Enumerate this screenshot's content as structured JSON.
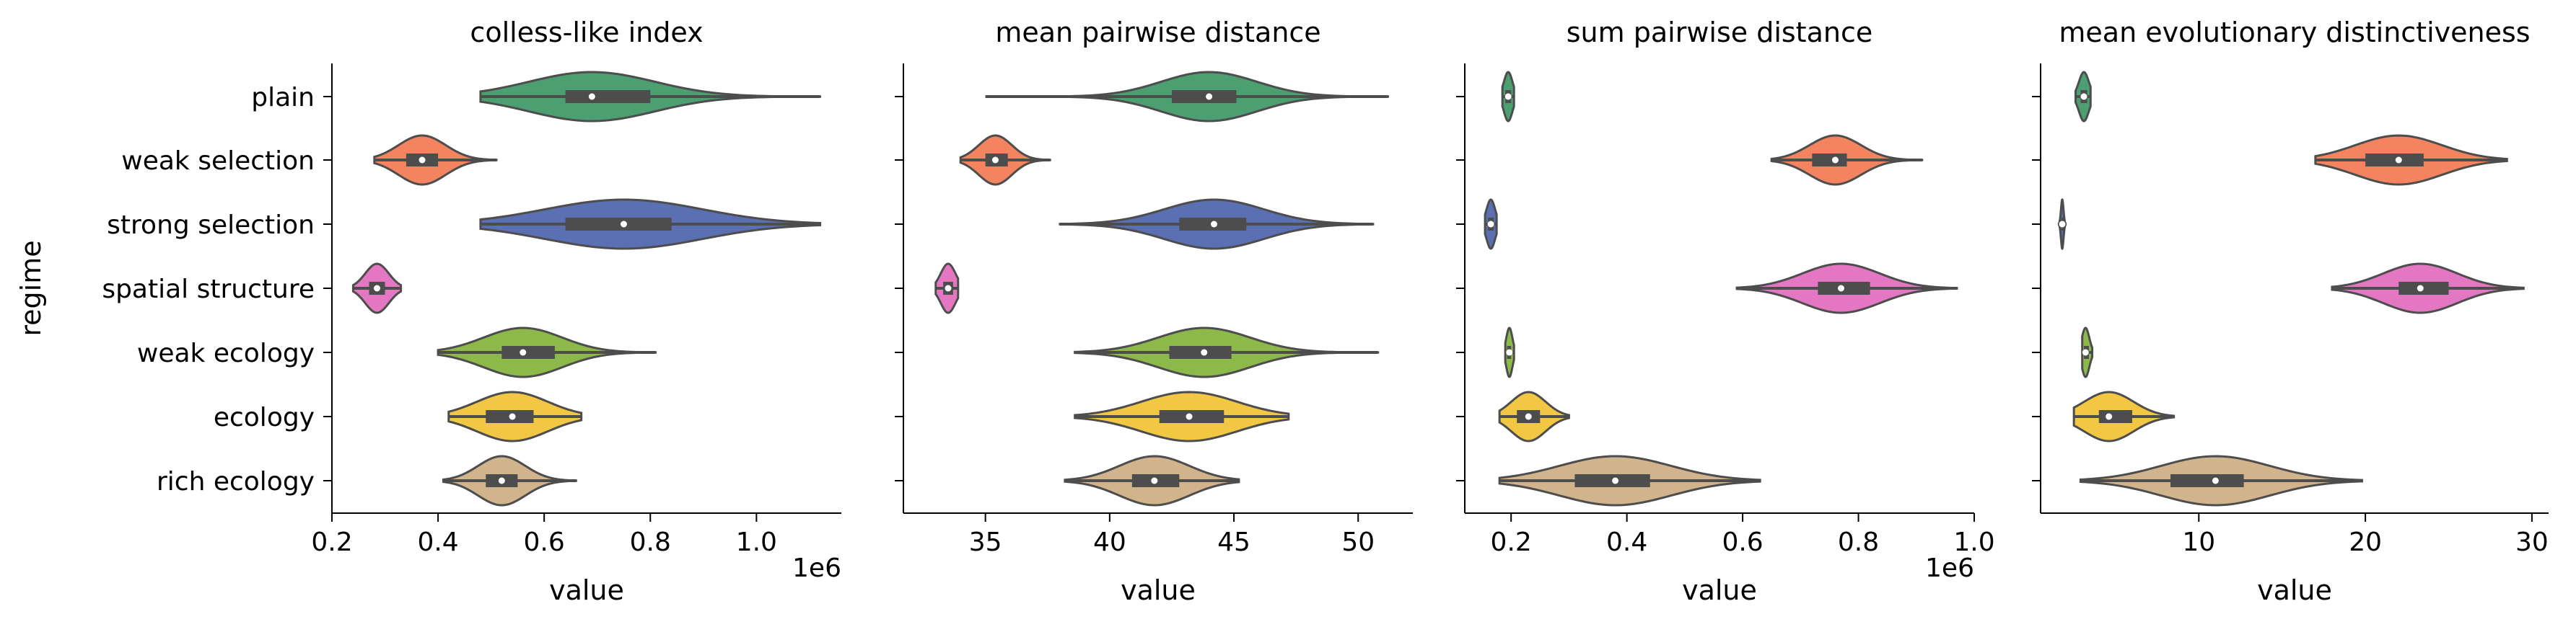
{
  "chart_data": {
    "type": "violin",
    "ylabel": "regime",
    "categories": [
      "plain",
      "weak selection",
      "strong selection",
      "spatial structure",
      "weak ecology",
      "ecology",
      "rich ecology"
    ],
    "colors": [
      "#4c9f70",
      "#f4845f",
      "#5b6fb3",
      "#e377c2",
      "#8cb94a",
      "#f2c744",
      "#d2b48c"
    ],
    "panels": [
      {
        "title": "colless-like index",
        "xlabel": "value",
        "offset_text": "1e6",
        "xlim": [
          0.2,
          1.16
        ],
        "ticks": [
          0.2,
          0.4,
          0.6,
          0.8,
          1.0
        ],
        "tick_labels": [
          "0.2",
          "0.4",
          "0.6",
          "0.8",
          "1.0"
        ],
        "stats": [
          {
            "min": 0.48,
            "q1": 0.64,
            "median": 0.69,
            "q3": 0.8,
            "max": 1.12
          },
          {
            "min": 0.28,
            "q1": 0.34,
            "median": 0.37,
            "q3": 0.4,
            "max": 0.51
          },
          {
            "min": 0.48,
            "q1": 0.64,
            "median": 0.75,
            "q3": 0.84,
            "max": 1.12
          },
          {
            "min": 0.24,
            "q1": 0.27,
            "median": 0.285,
            "q3": 0.3,
            "max": 0.33
          },
          {
            "min": 0.4,
            "q1": 0.52,
            "median": 0.56,
            "q3": 0.62,
            "max": 0.81
          },
          {
            "min": 0.42,
            "q1": 0.49,
            "median": 0.54,
            "q3": 0.58,
            "max": 0.67
          },
          {
            "min": 0.41,
            "q1": 0.49,
            "median": 0.52,
            "q3": 0.55,
            "max": 0.66
          }
        ]
      },
      {
        "title": "mean pairwise distance",
        "xlabel": "value",
        "xlim": [
          31.7,
          52.2
        ],
        "ticks": [
          35,
          40,
          45,
          50
        ],
        "tick_labels": [
          "35",
          "40",
          "45",
          "50"
        ],
        "stats": [
          {
            "min": 35.0,
            "q1": 42.5,
            "median": 44.0,
            "q3": 45.1,
            "max": 51.2
          },
          {
            "min": 34.0,
            "q1": 35.0,
            "median": 35.4,
            "q3": 35.9,
            "max": 37.6
          },
          {
            "min": 38.0,
            "q1": 42.8,
            "median": 44.2,
            "q3": 45.5,
            "max": 50.6
          },
          {
            "min": 33.0,
            "q1": 33.3,
            "median": 33.5,
            "q3": 33.7,
            "max": 33.9
          },
          {
            "min": 38.6,
            "q1": 42.4,
            "median": 43.8,
            "q3": 44.9,
            "max": 50.8
          },
          {
            "min": 38.6,
            "q1": 42.0,
            "median": 43.2,
            "q3": 44.6,
            "max": 47.2
          },
          {
            "min": 38.2,
            "q1": 40.9,
            "median": 41.8,
            "q3": 42.8,
            "max": 45.2
          }
        ]
      },
      {
        "title": "sum pairwise distance",
        "xlabel": "value",
        "offset_text": "1e6",
        "xlim": [
          0.12,
          1.0
        ],
        "ticks": [
          0.2,
          0.4,
          0.6,
          0.8,
          1.0
        ],
        "tick_labels": [
          "0.2",
          "0.4",
          "0.6",
          "0.8",
          "1.0"
        ],
        "stats": [
          {
            "min": 0.185,
            "q1": 0.19,
            "median": 0.195,
            "q3": 0.2,
            "max": 0.205
          },
          {
            "min": 0.65,
            "q1": 0.72,
            "median": 0.76,
            "q3": 0.78,
            "max": 0.91
          },
          {
            "min": 0.155,
            "q1": 0.16,
            "median": 0.165,
            "q3": 0.17,
            "max": 0.175
          },
          {
            "min": 0.59,
            "q1": 0.73,
            "median": 0.77,
            "q3": 0.82,
            "max": 0.97
          },
          {
            "min": 0.19,
            "q1": 0.193,
            "median": 0.197,
            "q3": 0.2,
            "max": 0.205
          },
          {
            "min": 0.18,
            "q1": 0.21,
            "median": 0.23,
            "q3": 0.25,
            "max": 0.3
          },
          {
            "min": 0.18,
            "q1": 0.31,
            "median": 0.38,
            "q3": 0.44,
            "max": 0.63
          }
        ]
      },
      {
        "title": "mean evolutionary distinctiveness",
        "xlabel": "value",
        "xlim": [
          0.5,
          31.0
        ],
        "ticks": [
          10,
          20,
          30
        ],
        "tick_labels": [
          "10",
          "20",
          "30"
        ],
        "stats": [
          {
            "min": 2.6,
            "q1": 2.9,
            "median": 3.1,
            "q3": 3.3,
            "max": 3.5
          },
          {
            "min": 17.0,
            "q1": 20.0,
            "median": 22.0,
            "q3": 23.5,
            "max": 28.5
          },
          {
            "min": 1.6,
            "q1": 1.75,
            "median": 1.8,
            "q3": 1.85,
            "max": 2.0
          },
          {
            "min": 18.0,
            "q1": 22.0,
            "median": 23.3,
            "q3": 25.0,
            "max": 29.5
          },
          {
            "min": 3.0,
            "q1": 3.1,
            "median": 3.2,
            "q3": 3.4,
            "max": 3.6
          },
          {
            "min": 2.5,
            "q1": 4.0,
            "median": 4.6,
            "q3": 6.0,
            "max": 8.5
          },
          {
            "min": 2.9,
            "q1": 8.3,
            "median": 11.0,
            "q3": 12.7,
            "max": 19.8
          }
        ]
      }
    ]
  }
}
